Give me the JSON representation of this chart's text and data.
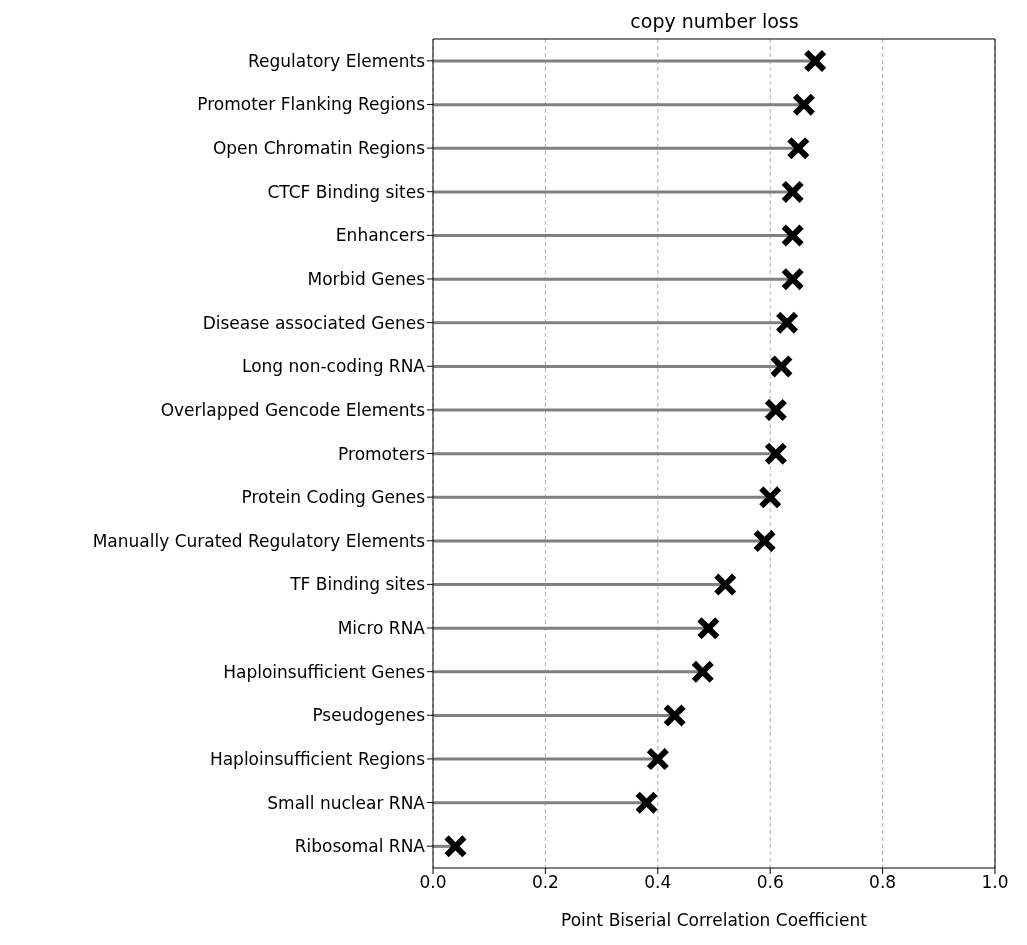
{
  "chart_data": {
    "type": "lollipop",
    "orientation": "horizontal",
    "title": "copy number loss",
    "xlabel": "Point Biserial Correlation Coefficient",
    "categories": [
      "Regulatory Elements",
      "Promoter Flanking Regions",
      "Open Chromatin Regions",
      "CTCF Binding sites",
      "Enhancers",
      "Morbid Genes",
      "Disease associated Genes",
      "Long non-coding RNA",
      "Overlapped Gencode Elements",
      "Promoters",
      "Protein Coding Genes",
      "Manually Curated Regulatory Elements",
      "TF Binding sites",
      "Micro RNA",
      "Haploinsufficient Genes",
      "Pseudogenes",
      "Haploinsufficient Regions",
      "Small nuclear RNA",
      "Ribosomal RNA"
    ],
    "values": [
      0.68,
      0.66,
      0.65,
      0.64,
      0.64,
      0.64,
      0.63,
      0.62,
      0.61,
      0.61,
      0.6,
      0.59,
      0.52,
      0.49,
      0.48,
      0.43,
      0.4,
      0.38,
      0.04
    ],
    "color": "#000000",
    "marker": "cross",
    "xlim": [
      0.0,
      1.0
    ],
    "xticks": [
      {
        "value": 0,
        "label": "0.0"
      },
      {
        "value": 0.2,
        "label": "0.2"
      },
      {
        "value": 0.4,
        "label": "0.4"
      },
      {
        "value": 0.6,
        "label": "0.6"
      },
      {
        "value": 0.8,
        "label": "0.8"
      },
      {
        "value": 1,
        "label": "1.0"
      }
    ],
    "grid": "x"
  }
}
